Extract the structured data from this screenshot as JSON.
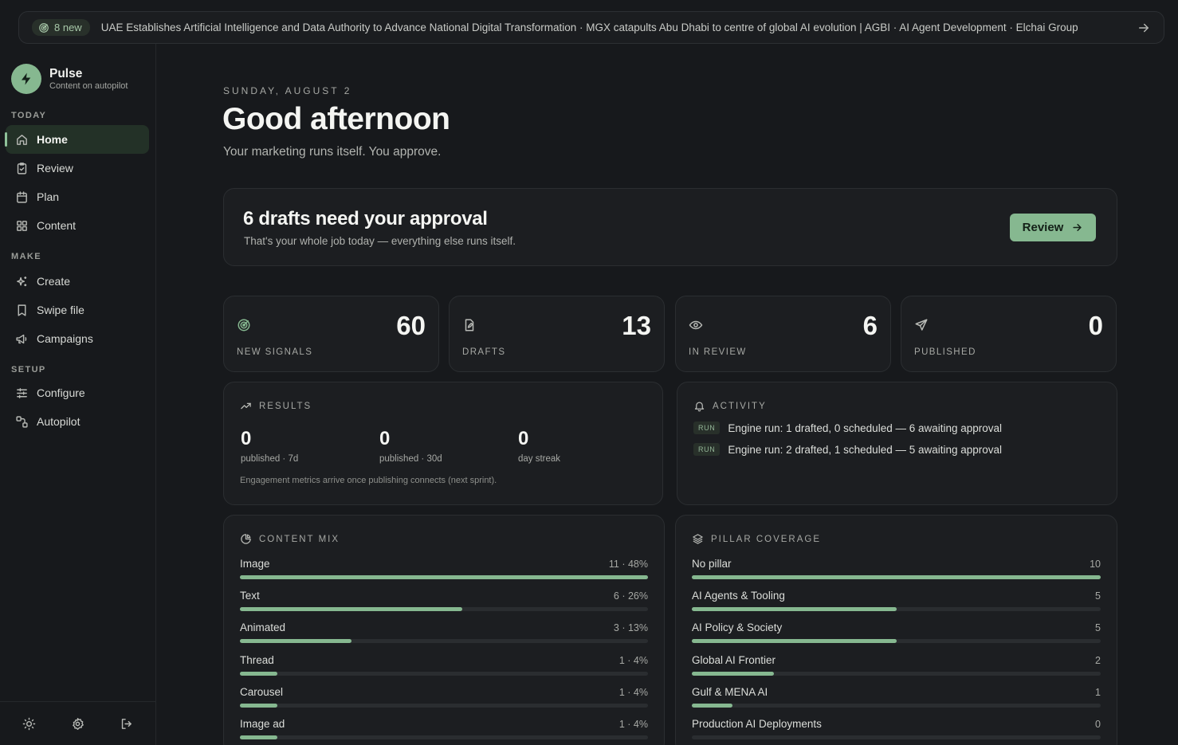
{
  "ticker": {
    "badge": "8 new",
    "headlines": "UAE Establishes Artificial Intelligence and Data Authority to Advance National Digital Transformation · MGX catapults Abu Dhabi to centre of global AI evolution | AGBI · AI Agent Development · Elchai Group"
  },
  "brand": {
    "name": "Pulse",
    "tagline": "Content on autopilot"
  },
  "sidebar": {
    "sections": [
      "TODAY",
      "MAKE",
      "SETUP"
    ],
    "items": [
      {
        "label": "Home",
        "icon": "home-icon"
      },
      {
        "label": "Review",
        "icon": "clipboard-check-icon"
      },
      {
        "label": "Plan",
        "icon": "calendar-icon"
      },
      {
        "label": "Content",
        "icon": "grid-icon"
      },
      {
        "label": "Create",
        "icon": "sparkles-icon"
      },
      {
        "label": "Swipe file",
        "icon": "bookmark-icon"
      },
      {
        "label": "Campaigns",
        "icon": "megaphone-icon"
      },
      {
        "label": "Configure",
        "icon": "sliders-icon"
      },
      {
        "label": "Autopilot",
        "icon": "workflow-icon"
      }
    ],
    "active": "Home"
  },
  "header": {
    "date": "SUNDAY, AUGUST 2",
    "greeting": "Good afternoon",
    "subtitle": "Your marketing runs itself. You approve."
  },
  "approval": {
    "title": "6 drafts need your approval",
    "subtitle": "That's your whole job today — everything else runs itself.",
    "button": "Review"
  },
  "stats": [
    {
      "value": "60",
      "label": "NEW SIGNALS",
      "icon": "radar-icon"
    },
    {
      "value": "13",
      "label": "DRAFTS",
      "icon": "draft-file-icon"
    },
    {
      "value": "6",
      "label": "IN REVIEW",
      "icon": "eye-icon"
    },
    {
      "value": "0",
      "label": "PUBLISHED",
      "icon": "send-icon"
    }
  ],
  "results": {
    "title": "RESULTS",
    "metrics": [
      {
        "value": "0",
        "label": "published · 7d"
      },
      {
        "value": "0",
        "label": "published · 30d"
      },
      {
        "value": "0",
        "label": "day streak"
      }
    ],
    "note": "Engagement metrics arrive once publishing connects (next sprint)."
  },
  "activity": {
    "title": "ACTIVITY",
    "items": [
      {
        "badge": "RUN",
        "text": "Engine run: 1 drafted, 0 scheduled — 6 awaiting approval"
      },
      {
        "badge": "RUN",
        "text": "Engine run: 2 drafted, 1 scheduled — 5 awaiting approval"
      }
    ]
  },
  "content_mix": {
    "title": "CONTENT MIX",
    "items": [
      {
        "label": "Image",
        "value": "11 · 48%",
        "fraction": 1.0
      },
      {
        "label": "Text",
        "value": "6 · 26%",
        "fraction": 0.545
      },
      {
        "label": "Animated",
        "value": "3 · 13%",
        "fraction": 0.273
      },
      {
        "label": "Thread",
        "value": "1 · 4%",
        "fraction": 0.091
      },
      {
        "label": "Carousel",
        "value": "1 · 4%",
        "fraction": 0.091
      },
      {
        "label": "Image ad",
        "value": "1 · 4%",
        "fraction": 0.091
      }
    ]
  },
  "pillar_coverage": {
    "title": "PILLAR COVERAGE",
    "items": [
      {
        "label": "No pillar",
        "value": "10",
        "fraction": 1.0
      },
      {
        "label": "AI Agents & Tooling",
        "value": "5",
        "fraction": 0.5
      },
      {
        "label": "AI Policy & Society",
        "value": "5",
        "fraction": 0.5
      },
      {
        "label": "Global AI Frontier",
        "value": "2",
        "fraction": 0.2
      },
      {
        "label": "Gulf & MENA AI",
        "value": "1",
        "fraction": 0.1
      },
      {
        "label": "Production AI Deployments",
        "value": "0",
        "fraction": 0.0
      }
    ]
  },
  "colors": {
    "accent": "#86b890",
    "background": "#17191c",
    "card": "#1c1e21"
  }
}
